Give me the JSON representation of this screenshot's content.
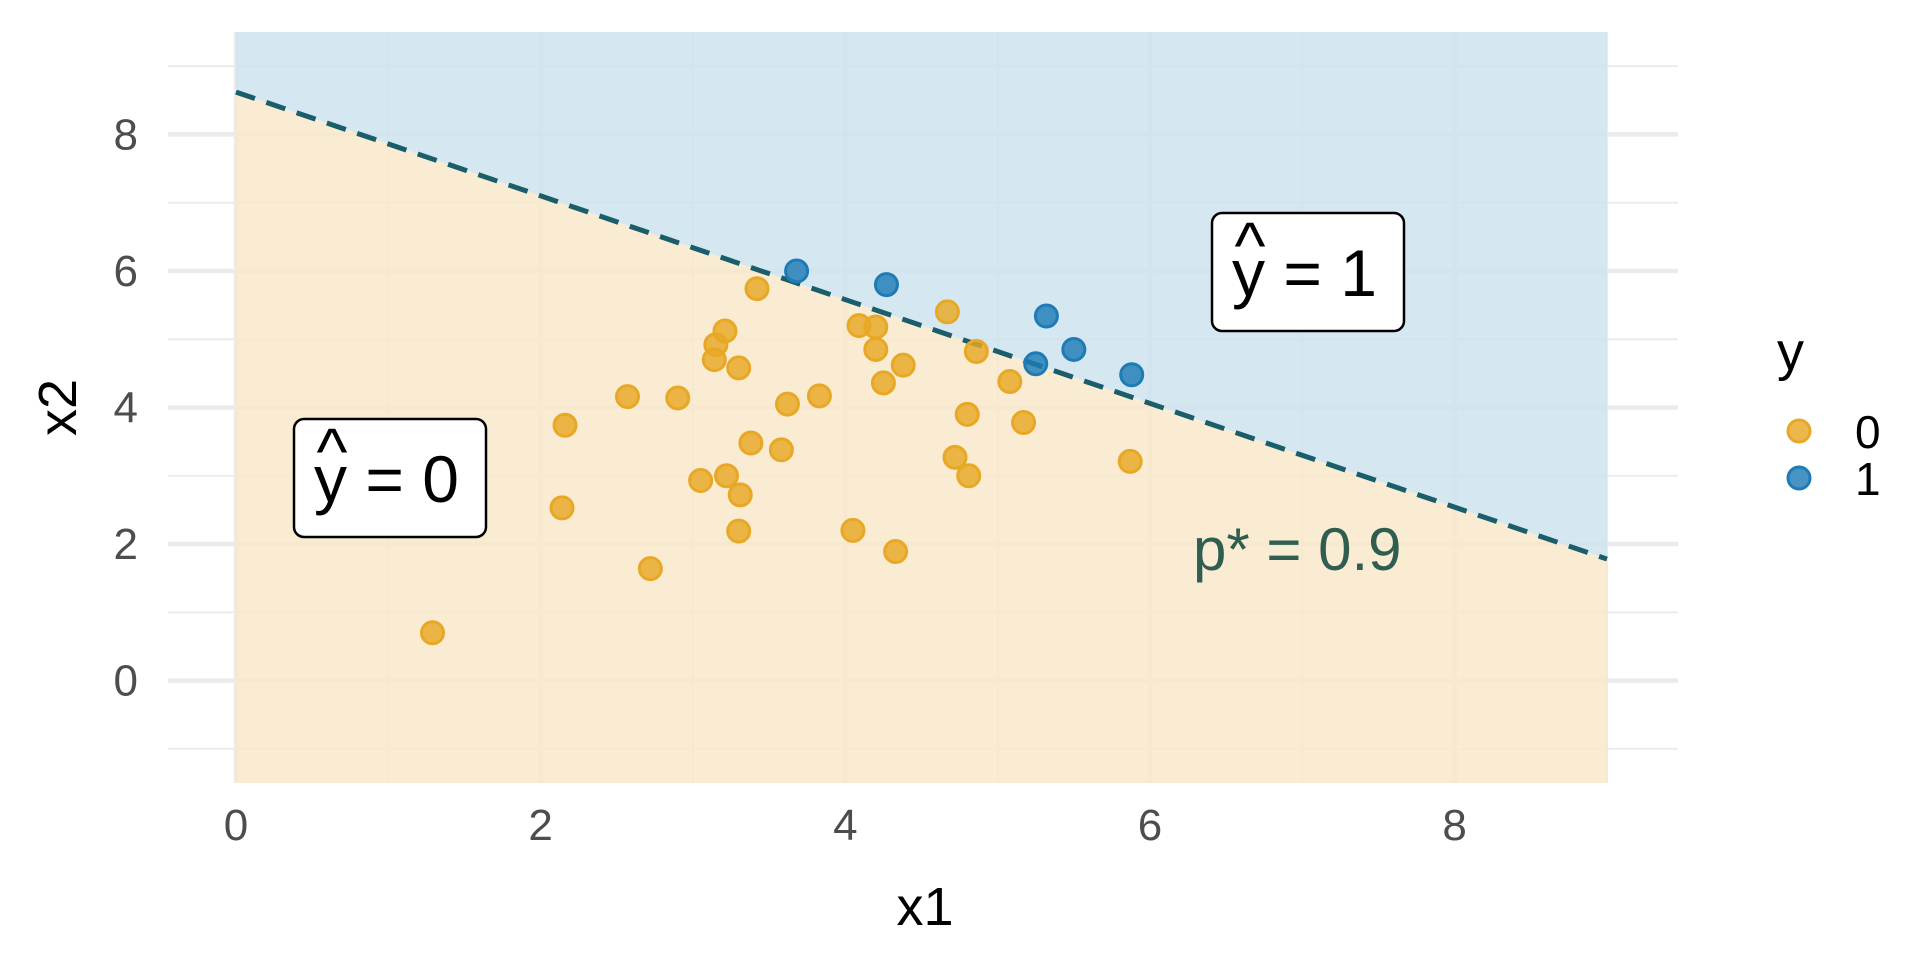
{
  "chart_data": {
    "type": "scatter",
    "xlabel": "x1",
    "ylabel": "x2",
    "xlim": [
      0,
      9
    ],
    "ylim": [
      -1.5,
      9.5
    ],
    "x_ticks": [
      "0",
      "2",
      "4",
      "6",
      "8"
    ],
    "y_ticks": [
      "0",
      "2",
      "4",
      "6",
      "8"
    ],
    "x_tick_values": [
      0,
      2,
      4,
      6,
      8
    ],
    "y_tick_values": [
      0,
      2,
      4,
      6,
      8
    ],
    "grid": true,
    "legend": {
      "title": "y",
      "placement": "right",
      "entries": [
        {
          "label": "0",
          "color": "#E8A826"
        },
        {
          "label": "1",
          "color": "#1F7BB6"
        }
      ]
    },
    "boundary": {
      "label": "p* = 0.9",
      "x": [
        0,
        9
      ],
      "y": [
        8.62,
        1.78
      ],
      "style": "dashed",
      "color": "#1A5D6B"
    },
    "regions": [
      {
        "label": "ŷ = 0",
        "hat": "^",
        "body": "y = 0",
        "side": "below",
        "color": "#F9E8C8"
      },
      {
        "label": "ŷ = 1",
        "hat": "^",
        "body": "y = 1",
        "side": "above",
        "color": "#CCE2EE"
      }
    ],
    "series": [
      {
        "name": "0",
        "color": "#E8A826",
        "points": [
          [
            1.29,
            0.7
          ],
          [
            2.16,
            3.74
          ],
          [
            2.14,
            2.53
          ],
          [
            2.57,
            4.16
          ],
          [
            2.9,
            4.14
          ],
          [
            2.72,
            1.64
          ],
          [
            3.05,
            2.93
          ],
          [
            3.22,
            3.0
          ],
          [
            3.31,
            2.72
          ],
          [
            3.3,
            2.19
          ],
          [
            3.38,
            3.48
          ],
          [
            3.58,
            3.38
          ],
          [
            3.62,
            4.05
          ],
          [
            4.05,
            2.2
          ],
          [
            4.09,
            5.2
          ],
          [
            4.33,
            1.89
          ],
          [
            4.38,
            4.62
          ],
          [
            4.67,
            5.4
          ],
          [
            4.72,
            3.27
          ],
          [
            4.8,
            3.9
          ],
          [
            3.15,
            4.92
          ],
          [
            3.14,
            4.7
          ],
          [
            3.21,
            5.12
          ],
          [
            3.3,
            4.58
          ],
          [
            3.42,
            5.74
          ],
          [
            3.83,
            4.17
          ],
          [
            4.2,
            5.18
          ],
          [
            4.2,
            4.85
          ],
          [
            4.25,
            4.36
          ],
          [
            4.81,
            3.0
          ],
          [
            4.86,
            4.82
          ],
          [
            5.08,
            4.38
          ],
          [
            5.17,
            3.78
          ],
          [
            5.87,
            3.21
          ]
        ]
      },
      {
        "name": "1",
        "color": "#1F7BB6",
        "points": [
          [
            3.68,
            6.0
          ],
          [
            4.27,
            5.8
          ],
          [
            5.32,
            5.34
          ],
          [
            5.25,
            4.64
          ],
          [
            5.5,
            4.85
          ],
          [
            5.88,
            4.48
          ]
        ]
      }
    ]
  }
}
